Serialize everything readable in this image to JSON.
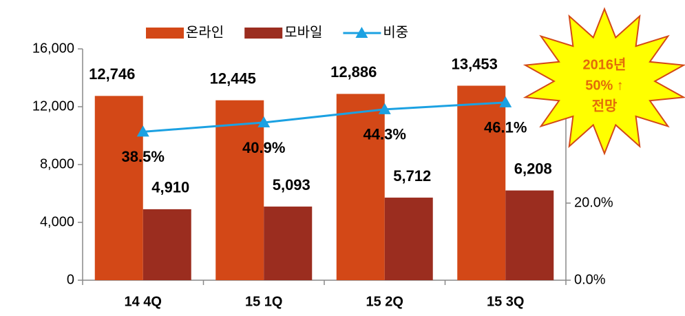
{
  "chart_data": {
    "type": "bar",
    "categories": [
      "14 4Q",
      "15 1Q",
      "15 2Q",
      "15 3Q"
    ],
    "series": [
      {
        "name": "온라인",
        "color": "#d34817",
        "values": [
          12746,
          12445,
          12886,
          13453
        ],
        "value_labels": [
          "12,746",
          "12,445",
          "12,886",
          "13,453"
        ]
      },
      {
        "name": "모바일",
        "color": "#9b2d1f",
        "values": [
          4910,
          5093,
          5712,
          6208
        ],
        "value_labels": [
          "4,910",
          "5,093",
          "5,712",
          "6,208"
        ]
      },
      {
        "name": "비중",
        "type": "line",
        "axis": "y2",
        "color": "#1ba1e2",
        "values": [
          38.5,
          40.9,
          44.3,
          46.1
        ],
        "value_labels": [
          "38.5%",
          "40.9%",
          "44.3%",
          "46.1%"
        ]
      }
    ],
    "ylim": [
      0,
      16000
    ],
    "yticks": [
      0,
      {
        "value": 4000,
        "label": "4,000"
      },
      {
        "value": 8000,
        "label": "8,000"
      },
      {
        "value": 12000,
        "label": "12,000"
      },
      {
        "value": 16000,
        "label": "16,000"
      }
    ],
    "y2lim": [
      0,
      60
    ],
    "y2ticks": [
      {
        "value": 0,
        "label": "0.0%"
      },
      {
        "value": 20,
        "label": "20.0%"
      }
    ],
    "legend": "top",
    "annotation": {
      "lines": [
        "2016년",
        "50% ↑",
        "전망"
      ]
    }
  }
}
